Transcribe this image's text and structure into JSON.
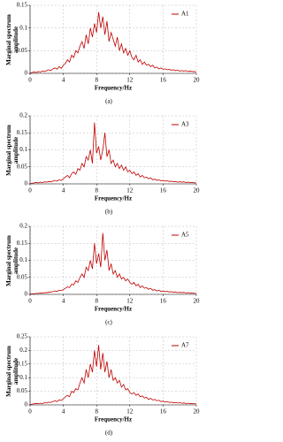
{
  "chart_data": [
    {
      "type": "line",
      "xlabel": "Frequency/Hz",
      "ylabel": "Marginal spectrum amplitude",
      "caption": "(a)",
      "legend": "upper right",
      "grid": true,
      "xlim": [
        0,
        20
      ],
      "xticks": [
        0,
        4,
        8,
        12,
        16,
        20
      ],
      "ylim": [
        0,
        0.15
      ],
      "yticks": [
        0,
        0.05,
        0.1,
        0.15
      ],
      "x": [
        0,
        0.25,
        0.5,
        0.75,
        1,
        1.25,
        1.5,
        1.75,
        2,
        2.25,
        2.5,
        2.75,
        3,
        3.25,
        3.5,
        3.75,
        4,
        4.25,
        4.5,
        4.75,
        5,
        5.25,
        5.5,
        5.75,
        6,
        6.25,
        6.5,
        6.75,
        7,
        7.25,
        7.5,
        7.75,
        8,
        8.25,
        8.5,
        8.75,
        9,
        9.25,
        9.5,
        9.75,
        10,
        10.25,
        10.5,
        10.75,
        11,
        11.25,
        11.5,
        11.75,
        12,
        12.25,
        12.5,
        12.75,
        13,
        13.25,
        13.5,
        13.75,
        14,
        14.25,
        14.5,
        14.75,
        15,
        15.25,
        15.5,
        15.75,
        16,
        16.25,
        16.5,
        16.75,
        17,
        17.25,
        17.5,
        17.75,
        18,
        18.25,
        18.5,
        18.75,
        19,
        19.25,
        19.5,
        19.75,
        20
      ],
      "series": [
        {
          "name": "A1",
          "color": "#c00000",
          "values": [
            0,
            0.002,
            0.003,
            0.002,
            0.004,
            0.003,
            0.005,
            0.004,
            0.006,
            0.008,
            0.006,
            0.01,
            0.012,
            0.009,
            0.015,
            0.011,
            0.018,
            0.022,
            0.03,
            0.025,
            0.04,
            0.035,
            0.05,
            0.045,
            0.06,
            0.07,
            0.055,
            0.085,
            0.065,
            0.1,
            0.08,
            0.11,
            0.09,
            0.135,
            0.1,
            0.125,
            0.085,
            0.115,
            0.07,
            0.09,
            0.075,
            0.06,
            0.08,
            0.05,
            0.065,
            0.045,
            0.055,
            0.04,
            0.05,
            0.035,
            0.03,
            0.04,
            0.025,
            0.03,
            0.02,
            0.025,
            0.018,
            0.02,
            0.015,
            0.018,
            0.012,
            0.014,
            0.01,
            0.012,
            0.009,
            0.01,
            0.008,
            0.009,
            0.007,
            0.008,
            0.006,
            0.007,
            0.005,
            0.006,
            0.005,
            0.006,
            0.004,
            0.005,
            0.004,
            0.004,
            0.003
          ]
        }
      ]
    },
    {
      "type": "line",
      "xlabel": "Frequency/Hz",
      "ylabel": "Marginal spectrum amplitude",
      "caption": "(b)",
      "legend": "upper right",
      "grid": true,
      "xlim": [
        0,
        20
      ],
      "xticks": [
        0,
        4,
        8,
        12,
        16,
        20
      ],
      "ylim": [
        0,
        0.2
      ],
      "yticks": [
        0,
        0.05,
        0.1,
        0.15,
        0.2
      ],
      "x": [
        0,
        0.25,
        0.5,
        0.75,
        1,
        1.25,
        1.5,
        1.75,
        2,
        2.25,
        2.5,
        2.75,
        3,
        3.25,
        3.5,
        3.75,
        4,
        4.25,
        4.5,
        4.75,
        5,
        5.25,
        5.5,
        5.75,
        6,
        6.25,
        6.5,
        6.75,
        7,
        7.25,
        7.5,
        7.75,
        8,
        8.25,
        8.5,
        8.75,
        9,
        9.25,
        9.5,
        9.75,
        10,
        10.25,
        10.5,
        10.75,
        11,
        11.25,
        11.5,
        11.75,
        12,
        12.25,
        12.5,
        12.75,
        13,
        13.25,
        13.5,
        13.75,
        14,
        14.25,
        14.5,
        14.75,
        15,
        15.25,
        15.5,
        15.75,
        16,
        16.25,
        16.5,
        16.75,
        17,
        17.25,
        17.5,
        17.75,
        18,
        18.25,
        18.5,
        18.75,
        19,
        19.25,
        19.5,
        19.75,
        20
      ],
      "series": [
        {
          "name": "A3",
          "color": "#c00000",
          "values": [
            0,
            0.002,
            0.003,
            0.004,
            0.003,
            0.005,
            0.004,
            0.006,
            0.005,
            0.007,
            0.006,
            0.008,
            0.01,
            0.008,
            0.012,
            0.01,
            0.015,
            0.02,
            0.025,
            0.018,
            0.03,
            0.035,
            0.028,
            0.045,
            0.04,
            0.06,
            0.05,
            0.08,
            0.07,
            0.1,
            0.06,
            0.18,
            0.09,
            0.11,
            0.07,
            0.1,
            0.15,
            0.08,
            0.1,
            0.06,
            0.07,
            0.05,
            0.06,
            0.045,
            0.055,
            0.04,
            0.05,
            0.035,
            0.04,
            0.03,
            0.035,
            0.025,
            0.03,
            0.02,
            0.025,
            0.018,
            0.02,
            0.015,
            0.018,
            0.012,
            0.014,
            0.01,
            0.012,
            0.009,
            0.01,
            0.008,
            0.009,
            0.007,
            0.008,
            0.006,
            0.007,
            0.005,
            0.006,
            0.005,
            0.006,
            0.004,
            0.005,
            0.004,
            0.004,
            0.003,
            0.003
          ]
        }
      ]
    },
    {
      "type": "line",
      "xlabel": "Frequency/Hz",
      "ylabel": "Marginal spectrum amplitude",
      "caption": "(c)",
      "legend": "upper right",
      "grid": true,
      "xlim": [
        0,
        20
      ],
      "xticks": [
        0,
        4,
        8,
        12,
        16,
        20
      ],
      "ylim": [
        0,
        0.2
      ],
      "yticks": [
        0,
        0.05,
        0.1,
        0.15,
        0.2
      ],
      "x": [
        0,
        0.25,
        0.5,
        0.75,
        1,
        1.25,
        1.5,
        1.75,
        2,
        2.25,
        2.5,
        2.75,
        3,
        3.25,
        3.5,
        3.75,
        4,
        4.25,
        4.5,
        4.75,
        5,
        5.25,
        5.5,
        5.75,
        6,
        6.25,
        6.5,
        6.75,
        7,
        7.25,
        7.5,
        7.75,
        8,
        8.25,
        8.5,
        8.75,
        9,
        9.25,
        9.5,
        9.75,
        10,
        10.25,
        10.5,
        10.75,
        11,
        11.25,
        11.5,
        11.75,
        12,
        12.25,
        12.5,
        12.75,
        13,
        13.25,
        13.5,
        13.75,
        14,
        14.25,
        14.5,
        14.75,
        15,
        15.25,
        15.5,
        15.75,
        16,
        16.25,
        16.5,
        16.75,
        17,
        17.25,
        17.5,
        17.75,
        18,
        18.25,
        18.5,
        18.75,
        19,
        19.25,
        19.5,
        19.75,
        20
      ],
      "series": [
        {
          "name": "A5",
          "color": "#c00000",
          "values": [
            0,
            0.002,
            0.002,
            0.003,
            0.003,
            0.004,
            0.004,
            0.005,
            0.005,
            0.006,
            0.007,
            0.008,
            0.01,
            0.009,
            0.012,
            0.011,
            0.014,
            0.018,
            0.022,
            0.02,
            0.03,
            0.028,
            0.04,
            0.035,
            0.05,
            0.06,
            0.05,
            0.08,
            0.07,
            0.1,
            0.075,
            0.15,
            0.09,
            0.12,
            0.08,
            0.18,
            0.1,
            0.13,
            0.07,
            0.09,
            0.06,
            0.07,
            0.05,
            0.06,
            0.045,
            0.05,
            0.04,
            0.045,
            0.035,
            0.03,
            0.035,
            0.025,
            0.03,
            0.02,
            0.025,
            0.018,
            0.02,
            0.015,
            0.018,
            0.012,
            0.014,
            0.01,
            0.012,
            0.009,
            0.01,
            0.008,
            0.009,
            0.007,
            0.008,
            0.006,
            0.007,
            0.005,
            0.006,
            0.005,
            0.006,
            0.004,
            0.005,
            0.004,
            0.004,
            0.003,
            0.003
          ]
        }
      ]
    },
    {
      "type": "line",
      "xlabel": "Frequency/Hz",
      "ylabel": "Marginal spectrum amplitude",
      "caption": "(d)",
      "legend": "upper right",
      "grid": true,
      "xlim": [
        0,
        20
      ],
      "xticks": [
        0,
        4,
        8,
        12,
        16,
        20
      ],
      "ylim": [
        0,
        0.25
      ],
      "yticks": [
        0,
        0.05,
        0.1,
        0.15,
        0.2,
        0.25
      ],
      "x": [
        0,
        0.25,
        0.5,
        0.75,
        1,
        1.25,
        1.5,
        1.75,
        2,
        2.25,
        2.5,
        2.75,
        3,
        3.25,
        3.5,
        3.75,
        4,
        4.25,
        4.5,
        4.75,
        5,
        5.25,
        5.5,
        5.75,
        6,
        6.25,
        6.5,
        6.75,
        7,
        7.25,
        7.5,
        7.75,
        8,
        8.25,
        8.5,
        8.75,
        9,
        9.25,
        9.5,
        9.75,
        10,
        10.25,
        10.5,
        10.75,
        11,
        11.25,
        11.5,
        11.75,
        12,
        12.25,
        12.5,
        12.75,
        13,
        13.25,
        13.5,
        13.75,
        14,
        14.25,
        14.5,
        14.75,
        15,
        15.25,
        15.5,
        15.75,
        16,
        16.25,
        16.5,
        16.75,
        17,
        17.25,
        17.5,
        17.75,
        18,
        18.25,
        18.5,
        18.75,
        19,
        19.25,
        19.5,
        19.75,
        20
      ],
      "series": [
        {
          "name": "A7",
          "color": "#c00000",
          "values": [
            0,
            0.003,
            0.004,
            0.005,
            0.004,
            0.006,
            0.005,
            0.008,
            0.007,
            0.01,
            0.009,
            0.012,
            0.015,
            0.012,
            0.018,
            0.016,
            0.022,
            0.03,
            0.035,
            0.03,
            0.05,
            0.045,
            0.06,
            0.055,
            0.08,
            0.1,
            0.08,
            0.13,
            0.1,
            0.15,
            0.12,
            0.2,
            0.14,
            0.22,
            0.13,
            0.19,
            0.12,
            0.16,
            0.1,
            0.13,
            0.09,
            0.1,
            0.08,
            0.09,
            0.065,
            0.075,
            0.055,
            0.06,
            0.045,
            0.04,
            0.045,
            0.035,
            0.04,
            0.03,
            0.033,
            0.025,
            0.028,
            0.02,
            0.024,
            0.018,
            0.02,
            0.015,
            0.017,
            0.012,
            0.014,
            0.01,
            0.012,
            0.009,
            0.01,
            0.008,
            0.009,
            0.007,
            0.008,
            0.006,
            0.007,
            0.005,
            0.006,
            0.005,
            0.005,
            0.004,
            0.004
          ]
        }
      ]
    }
  ]
}
